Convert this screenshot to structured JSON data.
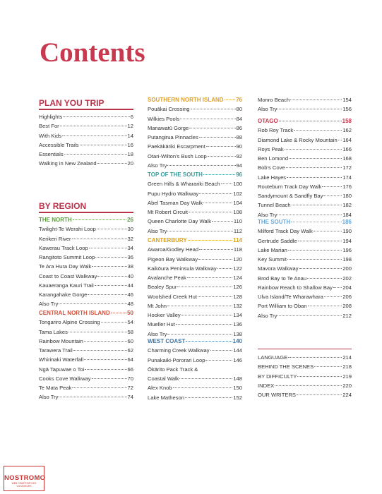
{
  "title": "Contents",
  "columns": [
    {
      "blocks": [
        {
          "heading": "PLAN YOU TRIP",
          "style": "major",
          "entries": [
            {
              "title": "Highlights",
              "page": 6
            },
            {
              "title": "Best For",
              "page": 12
            },
            {
              "title": "With Kids",
              "page": 14
            },
            {
              "title": "Accessible Trails",
              "page": 16
            },
            {
              "title": "Essentials",
              "page": 18
            },
            {
              "title": "Walking in New Zealand",
              "page": 20
            }
          ]
        },
        {
          "heading": "BY REGION",
          "style": "major",
          "entries": []
        },
        {
          "heading": "THE NORTH",
          "page": 26,
          "color": "#5b9b3e",
          "style": "region",
          "entries": [
            {
              "title": "Twilight-Te Werahi Loop",
              "page": 30
            },
            {
              "title": "Kerikeri River",
              "page": 32
            },
            {
              "title": "Kawerau Track Loop",
              "page": 34
            },
            {
              "title": "Rangitoto Summit Loop",
              "page": 36
            },
            {
              "title": "Te Ara Hura Day Walk",
              "page": 38
            },
            {
              "title": "Coast to Coast Walkway",
              "page": 40
            },
            {
              "title": "Kauaeranga Kauri Trail",
              "page": 44
            },
            {
              "title": "Karangahake Gorge",
              "page": 46
            },
            {
              "title": "Also Try",
              "page": 48
            }
          ]
        },
        {
          "heading": "CENTRAL NORTH ISLAND",
          "page": 50,
          "color": "#d4503a",
          "style": "region",
          "entries": [
            {
              "title": "Tongariro Alpine Crossing",
              "page": 54
            },
            {
              "title": "Tama Lakes",
              "page": 58
            },
            {
              "title": "Rainbow Mountain",
              "page": 60
            },
            {
              "title": "Tarawera Trail",
              "page": 62
            },
            {
              "title": "Whirinaki Waterfall",
              "page": 64
            },
            {
              "title": "Ngā Tapuwae o Toi",
              "page": 66
            },
            {
              "title": "Cooks Cove Walkway",
              "page": 70
            },
            {
              "title": "Te Mata Peak",
              "page": 72
            },
            {
              "title": "Also Try",
              "page": 74
            }
          ]
        }
      ]
    },
    {
      "blocks": [
        {
          "heading": "SOUTHERN NORTH ISLAND",
          "page": 76,
          "color": "#e0a020",
          "style": "region",
          "entries": [
            {
              "title": "Pouākai Crossing",
              "page": 80
            },
            {
              "title": "Wilkies Pools",
              "page": 84
            },
            {
              "title": "Manawatū Gorge",
              "page": 86
            },
            {
              "title": "Putangirua Pinnacles",
              "page": 88
            },
            {
              "title": "Paekākāriki Escarpment",
              "page": 90
            },
            {
              "title": "Otari-Wilton's Bush Loop",
              "page": 92
            },
            {
              "title": "Also Try",
              "page": 94
            }
          ]
        },
        {
          "heading": "TOP OF THE SOUTH",
          "page": 96,
          "color": "#3a9c9c",
          "style": "region",
          "entries": [
            {
              "title": "Green Hills & Wharariki Beach",
              "page": 100
            },
            {
              "title": "Pupu Hydro Walkway",
              "page": 102
            },
            {
              "title": "Abel Tasman Day Walk",
              "page": 104
            },
            {
              "title": "Mt Robert Circuit",
              "page": 108
            },
            {
              "title": "Queen Charlotte Day Walk",
              "page": 110
            },
            {
              "title": "Also Try",
              "page": 112
            }
          ]
        },
        {
          "heading": "CANTERBURY",
          "page": 114,
          "color": "#d9a21c",
          "style": "region",
          "entries": [
            {
              "title": "Awaroa/Godley Head",
              "page": 118
            },
            {
              "title": "Pigeon Bay Walkway",
              "page": 120
            },
            {
              "title": "Kaikōura Peninsula Walkway",
              "page": 122
            },
            {
              "title": "Avalanche Peak",
              "page": 124
            },
            {
              "title": "Bealey Spur",
              "page": 126
            },
            {
              "title": "Woolshed Creek Hut",
              "page": 128
            },
            {
              "title": "Mt John",
              "page": 132
            },
            {
              "title": "Hooker Valley",
              "page": 134
            },
            {
              "title": "Mueller Hut",
              "page": 136
            },
            {
              "title": "Also Try",
              "page": 138
            }
          ]
        },
        {
          "heading": "WEST COAST",
          "page": 140,
          "color": "#3a78b0",
          "style": "region",
          "entries": [
            {
              "title": "Charming Creek Walkway",
              "page": 144
            },
            {
              "title": "Punakaiki-Pororari Loop",
              "page": 146
            },
            {
              "lines": [
                "Ōkārito Pack Track &",
                "Coastal Walk"
              ],
              "page": 148
            },
            {
              "title": "Alex Knob",
              "page": 150
            },
            {
              "title": "Lake Matheson",
              "page": 152
            }
          ]
        }
      ]
    },
    {
      "blocks": [
        {
          "style": "continued",
          "entries": [
            {
              "title": "Monro Beach",
              "page": 154
            },
            {
              "title": "Also Try",
              "page": 156
            }
          ]
        },
        {
          "heading": "OTAGO",
          "page": 158,
          "color": "#c8384e",
          "style": "region",
          "entries": [
            {
              "title": "Rob Roy Track",
              "page": 162
            },
            {
              "title": "Diamond Lake & Rocky Mountain",
              "page": 164
            },
            {
              "title": "Roys Peak",
              "page": 166
            },
            {
              "title": "Ben Lomond",
              "page": 168
            },
            {
              "title": "Bob's Cove",
              "page": 172
            },
            {
              "title": "Lake Hayes",
              "page": 174
            },
            {
              "title": "Routeburn Track Day Walk",
              "page": 176
            },
            {
              "title": "Sandymount  & Sandfly Bay",
              "page": 180
            },
            {
              "title": "Tunnel Beach",
              "page": 182
            },
            {
              "title": "Also Try",
              "page": 184
            }
          ]
        },
        {
          "heading": "THE SOUTH",
          "page": 186,
          "color": "#6aa8d8",
          "style": "region",
          "entries": [
            {
              "title": "Milford Track Day Walk",
              "page": 190
            },
            {
              "title": "Gertrude Saddle",
              "page": 194
            },
            {
              "title": "Lake Marian",
              "page": 196
            },
            {
              "title": "Key Summit",
              "page": 198
            },
            {
              "title": "Mavora Walkway",
              "page": 200
            },
            {
              "title": "Brod Bay to Te Anau",
              "page": 202
            },
            {
              "title": "Rainbow Reach to Shallow Bay",
              "page": 204
            },
            {
              "title": "Ulva Island/Te Wharawhara",
              "page": 206
            },
            {
              "title": "Port William to Oban",
              "page": 208
            },
            {
              "title": "Also Try",
              "page": 212
            }
          ]
        },
        {
          "style": "back-matter",
          "entries": [
            {
              "title": "LANGUAGE",
              "page": 214
            },
            {
              "title": "BEHIND THE SCENES",
              "page": 218
            },
            {
              "title": "BY DIFFICULTY",
              "page": 219
            },
            {
              "title": "INDEX",
              "page": 220
            },
            {
              "title": "OUR WRITERS",
              "page": 224
            }
          ]
        }
      ]
    }
  ],
  "watermark": {
    "name": "NOSTROMO",
    "tagline": "WEB COMPTOIR DES VOYAGEURS"
  }
}
